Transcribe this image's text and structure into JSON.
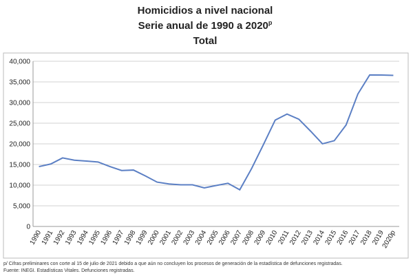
{
  "chart_data": {
    "type": "line",
    "title": [
      "Homicidios a nivel nacional",
      "Serie anual de 1990 a 2020",
      "Total"
    ],
    "title_superscript": "p",
    "categories": [
      "1990",
      "1991",
      "1992",
      "1993",
      "1994",
      "1995",
      "1996",
      "1997",
      "1998",
      "1999",
      "2000",
      "2001",
      "2002",
      "2003",
      "2004",
      "2005",
      "2006",
      "2007",
      "2008",
      "2009",
      "2010",
      "2011",
      "2012",
      "2013",
      "2014",
      "2015",
      "2016",
      "2017",
      "2018",
      "2019",
      "2020p"
    ],
    "series": [
      {
        "name": "Total",
        "color": "#5b7fc4",
        "values": [
          14493,
          15125,
          16594,
          16050,
          15839,
          15612,
          14505,
          13552,
          13656,
          12249,
          10737,
          10285,
          10088,
          10087,
          9329,
          9921,
          10452,
          8867,
          14006,
          19803,
          25757,
          27213,
          25967,
          23063,
          20010,
          20762,
          24559,
          32079,
          36685,
          36661,
          36579
        ]
      }
    ],
    "ylim": [
      0,
      40000
    ],
    "yticks": [
      {
        "value": 0,
        "label": "0"
      },
      {
        "value": 5000,
        "label": "5,000"
      },
      {
        "value": 10000,
        "label": "10,000"
      },
      {
        "value": 15000,
        "label": "15,000"
      },
      {
        "value": 20000,
        "label": "20,000"
      },
      {
        "value": 25000,
        "label": "25,000"
      },
      {
        "value": 30000,
        "label": "30,000"
      },
      {
        "value": 35000,
        "label": "35,000"
      },
      {
        "value": 40000,
        "label": "40,000"
      }
    ],
    "grid": true,
    "notes": [
      "p/ Cifras preliminares con corte al 15 de julio de 2021 debido a que aún no concluyen los procesos de generación de la estadística de defunciones registradas.",
      "Fuente: INEGI. Estadísticas Vitales. Defunciones registradas."
    ]
  }
}
